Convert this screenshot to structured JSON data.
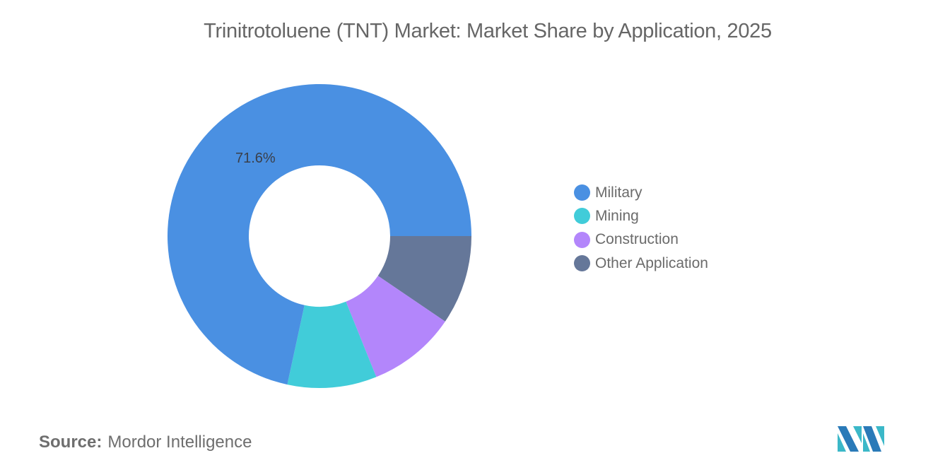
{
  "title": "Trinitrotoluene (TNT) Market: Market Share by Application, 2025",
  "source": {
    "label": "Source:",
    "value": "Mordor Intelligence"
  },
  "logo": "mordor-intelligence-logo",
  "legend": [
    {
      "label": "Military",
      "color": "#4a90e2"
    },
    {
      "label": "Mining",
      "color": "#41ccd9"
    },
    {
      "label": "Construction",
      "color": "#b386fb"
    },
    {
      "label": "Other Application",
      "color": "#657799"
    }
  ],
  "data_label": "71.6%",
  "chart_data": {
    "type": "pie",
    "subtype": "donut",
    "title": "Trinitrotoluene (TNT) Market: Market Share by Application, 2025",
    "categories": [
      "Military",
      "Mining",
      "Construction",
      "Other Application"
    ],
    "values": [
      71.6,
      9.5,
      9.4,
      9.5
    ],
    "colors": [
      "#4a90e2",
      "#41ccd9",
      "#b386fb",
      "#657799"
    ],
    "data_labels": [
      "71.6%",
      "",
      "",
      ""
    ],
    "legend_position": "right",
    "unit": "%"
  }
}
